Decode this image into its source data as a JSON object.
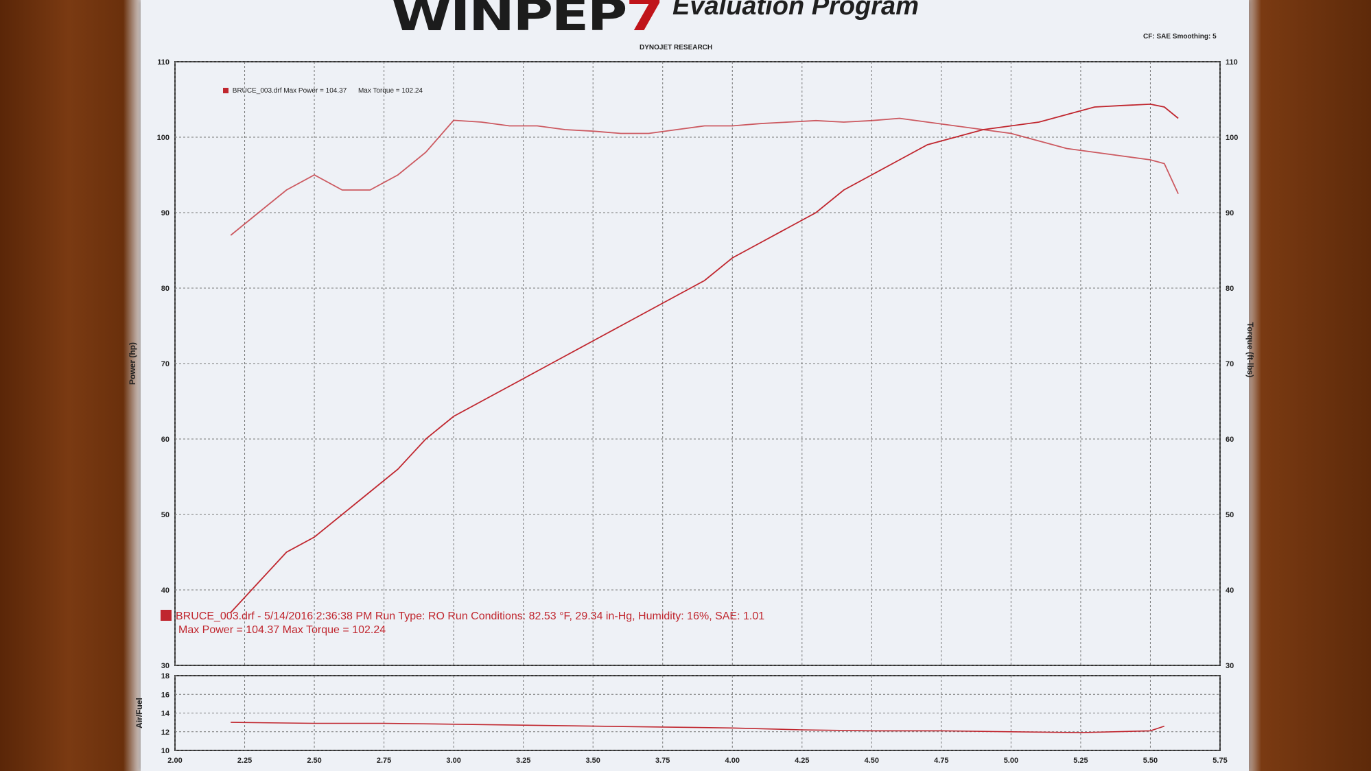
{
  "header": {
    "logo_text": "WINPEP",
    "logo_accent": "7",
    "subtitle": "Evaluation Program",
    "chart_source": "DYNOJET RESEARCH",
    "settings": "CF: SAE  Smoothing: 5"
  },
  "legend": {
    "file_label": "BRUCE_003.drf Max Power = 104.37",
    "torque_label": "Max Torque = 102.24"
  },
  "run_info": {
    "line1": "BRUCE_003.drf - 5/14/2016 2:36:38 PM  Run Type: RO  Run Conditions: 82.53 °F, 29.34 in-Hg,  Humidity:  16%, SAE: 1.01",
    "line2": "Max Power = 104.37  Max Torque = 102.24",
    "color": "#c0262e"
  },
  "chart_data": [
    {
      "type": "line",
      "ylabel": "Power (hp)",
      "y2label": "Torque (ft-lbs)",
      "xlim": [
        2.0,
        5.75
      ],
      "ylim": [
        30,
        110
      ],
      "y2lim": [
        30,
        110
      ],
      "x_ticks": [
        "2.00",
        "2.25",
        "2.50",
        "2.75",
        "3.00",
        "3.25",
        "3.50",
        "3.75",
        "4.00",
        "4.25",
        "4.50",
        "4.75",
        "5.00",
        "5.25",
        "5.50",
        "5.75"
      ],
      "y_ticks": [
        30,
        40,
        50,
        60,
        70,
        80,
        90,
        100,
        110
      ],
      "grid": true,
      "series": [
        {
          "axis": "left",
          "color": "#c0262e",
          "x": [
            2.2,
            2.3,
            2.4,
            2.5,
            2.6,
            2.7,
            2.8,
            2.9,
            3.0,
            3.1,
            3.2,
            3.3,
            3.4,
            3.5,
            3.6,
            3.7,
            3.8,
            3.9,
            4.0,
            4.1,
            4.2,
            4.3,
            4.4,
            4.5,
            4.6,
            4.7,
            4.8,
            4.9,
            5.0,
            5.1,
            5.2,
            5.3,
            5.4,
            5.5,
            5.55,
            5.6
          ],
          "y": [
            37,
            41,
            45,
            47,
            50,
            53,
            56,
            60,
            63,
            65,
            67,
            69,
            71,
            73,
            75,
            77,
            79,
            81,
            84,
            86,
            88,
            90,
            93,
            95,
            97,
            99,
            100,
            101,
            101.5,
            102,
            103,
            104,
            104.2,
            104.37,
            104.0,
            102.5
          ]
        },
        {
          "axis": "right",
          "color": "#c0262e",
          "x": [
            2.2,
            2.3,
            2.4,
            2.5,
            2.6,
            2.7,
            2.8,
            2.9,
            3.0,
            3.1,
            3.2,
            3.3,
            3.4,
            3.5,
            3.6,
            3.7,
            3.8,
            3.9,
            4.0,
            4.1,
            4.2,
            4.3,
            4.4,
            4.5,
            4.6,
            4.7,
            4.8,
            4.9,
            5.0,
            5.1,
            5.2,
            5.3,
            5.4,
            5.5,
            5.55,
            5.6
          ],
          "y": [
            87,
            90,
            93,
            95,
            93,
            93,
            95,
            98,
            102.24,
            102,
            101.5,
            101.5,
            101,
            100.8,
            100.5,
            100.5,
            101,
            101.5,
            101.5,
            101.8,
            102,
            102.2,
            102,
            102.2,
            102.5,
            102,
            101.5,
            101,
            100.5,
            99.5,
            98.5,
            98,
            97.5,
            97,
            96.5,
            92.5
          ]
        }
      ]
    },
    {
      "type": "line",
      "ylabel": "Air/Fuel",
      "xlim": [
        2.0,
        5.75
      ],
      "ylim": [
        10,
        18
      ],
      "y_ticks": [
        10,
        12,
        14,
        16,
        18
      ],
      "grid": true,
      "series": [
        {
          "color": "#c0262e",
          "x": [
            2.2,
            2.5,
            2.75,
            3.0,
            3.25,
            3.5,
            3.75,
            4.0,
            4.25,
            4.5,
            4.75,
            5.0,
            5.25,
            5.5,
            5.55
          ],
          "y": [
            13.0,
            12.9,
            12.9,
            12.8,
            12.7,
            12.6,
            12.5,
            12.4,
            12.2,
            12.1,
            12.1,
            12.0,
            11.9,
            12.1,
            12.6
          ]
        }
      ]
    }
  ]
}
